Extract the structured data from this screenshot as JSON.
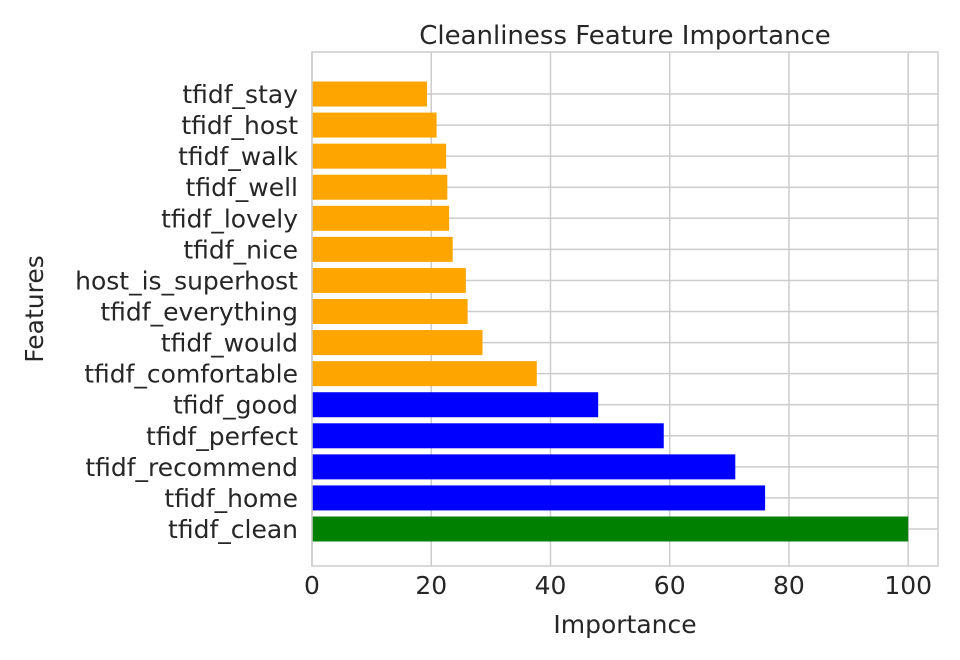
{
  "chart_data": {
    "type": "bar",
    "orientation": "horizontal",
    "title": "Cleanliness Feature Importance",
    "xlabel": "Importance",
    "ylabel": "Features",
    "xlim": [
      0,
      105
    ],
    "xticks": [
      0,
      20,
      40,
      60,
      80,
      100
    ],
    "grid": true,
    "categories": [
      "tfidf_clean",
      "tfidf_home",
      "tfidf_recommend",
      "tfidf_perfect",
      "tfidf_good",
      "tfidf_comfortable",
      "tfidf_would",
      "tfidf_everything",
      "host_is_superhost",
      "tfidf_nice",
      "tfidf_lovely",
      "tfidf_well",
      "tfidf_walk",
      "tfidf_host",
      "tfidf_stay"
    ],
    "values": [
      100,
      76,
      71,
      59,
      48,
      37.7,
      28.6,
      26.1,
      25.8,
      23.6,
      23,
      22.7,
      22.5,
      20.9,
      19.3
    ],
    "colors": [
      "#008000",
      "#0000ff",
      "#0000ff",
      "#0000ff",
      "#0000ff",
      "#ffa500",
      "#ffa500",
      "#ffa500",
      "#ffa500",
      "#ffa500",
      "#ffa500",
      "#ffa500",
      "#ffa500",
      "#ffa500",
      "#ffa500"
    ]
  }
}
